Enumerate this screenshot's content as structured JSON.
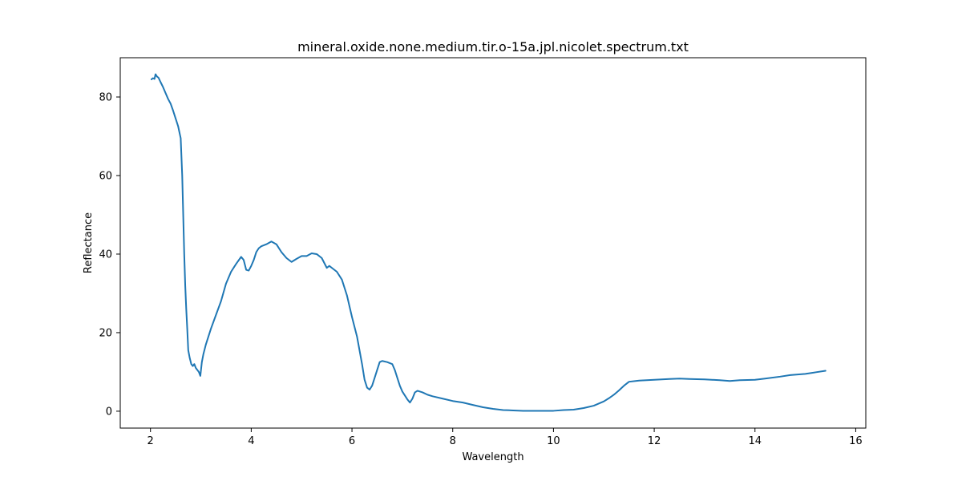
{
  "chart_data": {
    "type": "line",
    "title": "mineral.oxide.none.medium.tir.o-15a.jpl.nicolet.spectrum.txt",
    "xlabel": "Wavelength",
    "ylabel": "Reflectance",
    "xlim": [
      1.4,
      16.2
    ],
    "ylim": [
      -4.3,
      90
    ],
    "xticks": [
      2,
      4,
      6,
      8,
      10,
      12,
      14,
      16
    ],
    "yticks": [
      0,
      20,
      40,
      60,
      80
    ],
    "grid": false,
    "legend": "none",
    "series": [
      {
        "color": "#1f77b4",
        "x": [
          2.02,
          2.05,
          2.08,
          2.1,
          2.13,
          2.16,
          2.2,
          2.25,
          2.3,
          2.35,
          2.4,
          2.45,
          2.5,
          2.55,
          2.6,
          2.63,
          2.65,
          2.67,
          2.69,
          2.71,
          2.73,
          2.75,
          2.78,
          2.81,
          2.84,
          2.87,
          2.9,
          2.93,
          2.96,
          2.99,
          3.02,
          3.05,
          3.1,
          3.2,
          3.3,
          3.4,
          3.5,
          3.6,
          3.7,
          3.8,
          3.85,
          3.9,
          3.95,
          4.0,
          4.05,
          4.1,
          4.15,
          4.2,
          4.3,
          4.4,
          4.5,
          4.6,
          4.7,
          4.8,
          4.9,
          5.0,
          5.1,
          5.2,
          5.3,
          5.4,
          5.5,
          5.55,
          5.6,
          5.7,
          5.8,
          5.9,
          6.0,
          6.1,
          6.2,
          6.25,
          6.3,
          6.35,
          6.4,
          6.45,
          6.5,
          6.55,
          6.6,
          6.7,
          6.8,
          6.85,
          6.9,
          6.95,
          7.0,
          7.05,
          7.1,
          7.15,
          7.2,
          7.25,
          7.3,
          7.4,
          7.5,
          7.6,
          7.8,
          8.0,
          8.2,
          8.4,
          8.6,
          8.8,
          9.0,
          9.2,
          9.4,
          9.6,
          9.8,
          10.0,
          10.2,
          10.4,
          10.6,
          10.8,
          11.0,
          11.1,
          11.2,
          11.3,
          11.4,
          11.5,
          11.7,
          12.0,
          12.3,
          12.5,
          12.7,
          13.0,
          13.3,
          13.5,
          13.7,
          14.0,
          14.2,
          14.5,
          14.7,
          15.0,
          15.2,
          15.4
        ],
        "y": [
          84.5,
          84.8,
          84.6,
          85.8,
          85.2,
          84.9,
          83.8,
          82.5,
          81.0,
          79.5,
          78.3,
          76.5,
          74.5,
          72.5,
          69.5,
          60.0,
          50.0,
          40.0,
          32.0,
          26.0,
          21.0,
          15.5,
          13.5,
          12.0,
          11.5,
          12.0,
          11.0,
          10.5,
          10.0,
          9.0,
          12.5,
          14.5,
          17.0,
          21.0,
          24.5,
          28.0,
          32.5,
          35.5,
          37.5,
          39.3,
          38.5,
          36.0,
          35.8,
          37.0,
          38.5,
          40.5,
          41.5,
          42.0,
          42.5,
          43.2,
          42.5,
          40.5,
          39.0,
          38.0,
          38.8,
          39.5,
          39.5,
          40.2,
          40.0,
          39.0,
          36.5,
          37.0,
          36.5,
          35.5,
          33.5,
          29.5,
          24.0,
          19.0,
          12.0,
          8.0,
          6.0,
          5.5,
          6.5,
          8.5,
          10.5,
          12.5,
          12.8,
          12.5,
          12.0,
          10.5,
          8.5,
          6.5,
          5.0,
          4.0,
          3.0,
          2.2,
          3.2,
          4.8,
          5.2,
          4.8,
          4.2,
          3.8,
          3.2,
          2.6,
          2.2,
          1.6,
          1.0,
          0.6,
          0.3,
          0.2,
          0.1,
          0.1,
          0.1,
          0.1,
          0.3,
          0.4,
          0.8,
          1.4,
          2.5,
          3.3,
          4.2,
          5.3,
          6.5,
          7.5,
          7.8,
          8.0,
          8.2,
          8.3,
          8.2,
          8.1,
          7.9,
          7.7,
          7.9,
          8.0,
          8.3,
          8.8,
          9.2,
          9.5,
          9.9,
          10.3
        ]
      }
    ]
  }
}
